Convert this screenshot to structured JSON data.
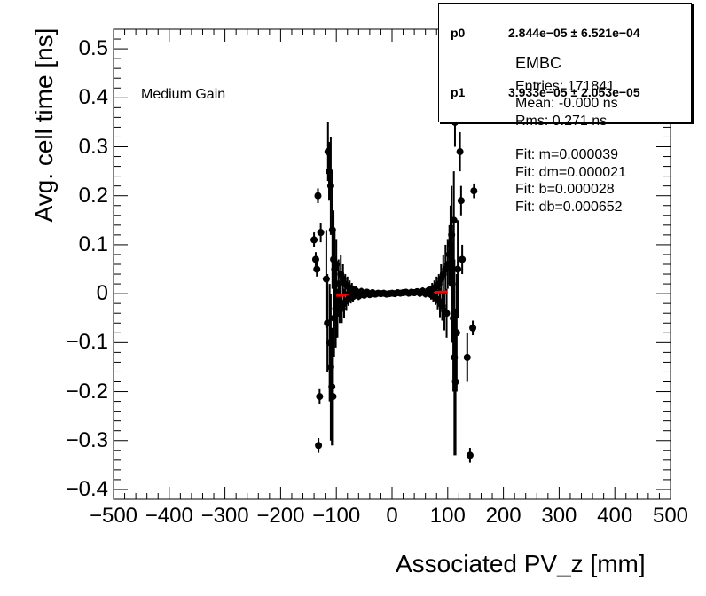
{
  "chart_data": {
    "type": "scatter",
    "xlabel": "Associated PV_z [mm]",
    "ylabel": "Avg. cell time [ns]",
    "annotation": "Medium Gain",
    "xlim": [
      -500,
      500
    ],
    "ylim": [
      -0.42,
      0.54
    ],
    "x_ticks": [
      "−500",
      "−400",
      "−300",
      "−200",
      "−100",
      "0",
      "100",
      "200",
      "300",
      "400",
      "500"
    ],
    "y_ticks": [
      "0.5",
      "0.4",
      "0.3",
      "0.2",
      "0.1",
      "0",
      "−0.1",
      "−0.2",
      "−0.3",
      "−0.4"
    ],
    "x_tick_values": [
      -500,
      -400,
      -300,
      -200,
      -100,
      0,
      100,
      200,
      300,
      400,
      500
    ],
    "y_tick_values": [
      0.5,
      0.4,
      0.3,
      0.2,
      0.1,
      0,
      -0.1,
      -0.2,
      -0.3,
      -0.4
    ],
    "grid": false,
    "fit_line": {
      "x": [
        -100,
        100
      ],
      "y": [
        -0.0039,
        0.0039
      ],
      "color": "#ff0000"
    },
    "points": [
      [
        -140,
        0.11,
        0.015
      ],
      [
        -137,
        0.07,
        0.015
      ],
      [
        -135,
        0.05,
        0.015
      ],
      [
        -133,
        0.2,
        0.015
      ],
      [
        -130,
        -0.21,
        0.015
      ],
      [
        -132,
        -0.31,
        0.015
      ],
      [
        -128,
        0.125,
        0.02
      ],
      [
        -115,
        0.29,
        0.06
      ],
      [
        -113,
        0.25,
        0.06
      ],
      [
        -110,
        0.22,
        0.1
      ],
      [
        -107,
        0.13,
        0.12
      ],
      [
        -105,
        0.07,
        0.1
      ],
      [
        -103,
        0.05,
        0.08
      ],
      [
        -101,
        -0.03,
        0.08
      ],
      [
        -118,
        0.03,
        0.1
      ],
      [
        -116,
        -0.06,
        0.1
      ],
      [
        -112,
        -0.1,
        0.12
      ],
      [
        -110,
        -0.15,
        0.15
      ],
      [
        -108,
        -0.19,
        0.12
      ],
      [
        -106,
        -0.21,
        0.1
      ],
      [
        -104,
        -0.05,
        0.08
      ],
      [
        -100,
        0.06,
        0.05
      ],
      [
        -98,
        -0.04,
        0.05
      ],
      [
        -96,
        0.02,
        0.05
      ],
      [
        -94,
        -0.02,
        0.04
      ],
      [
        -92,
        0.04,
        0.04
      ],
      [
        -90,
        -0.03,
        0.03
      ],
      [
        -88,
        0.03,
        0.03
      ],
      [
        -86,
        -0.02,
        0.03
      ],
      [
        -84,
        0.02,
        0.02
      ],
      [
        -82,
        -0.015,
        0.02
      ],
      [
        -80,
        0.015,
        0.02
      ],
      [
        -78,
        -0.01,
        0.015
      ],
      [
        -76,
        0.012,
        0.015
      ],
      [
        -74,
        -0.008,
        0.012
      ],
      [
        -72,
        0.01,
        0.012
      ],
      [
        -70,
        -0.006,
        0.01
      ],
      [
        -65,
        0.006,
        0.01
      ],
      [
        -60,
        -0.005,
        0.008
      ],
      [
        -55,
        0.004,
        0.008
      ],
      [
        -50,
        -0.003,
        0.007
      ],
      [
        -45,
        0.003,
        0.007
      ],
      [
        -40,
        -0.002,
        0.006
      ],
      [
        -35,
        0.002,
        0.006
      ],
      [
        -30,
        -0.001,
        0.006
      ],
      [
        -25,
        0.001,
        0.006
      ],
      [
        -20,
        0.0,
        0.006
      ],
      [
        -15,
        0.001,
        0.006
      ],
      [
        -10,
        -0.001,
        0.006
      ],
      [
        -5,
        0.0,
        0.006
      ],
      [
        0,
        0.001,
        0.006
      ],
      [
        5,
        0.0,
        0.006
      ],
      [
        10,
        0.002,
        0.006
      ],
      [
        15,
        0.001,
        0.006
      ],
      [
        20,
        0.002,
        0.006
      ],
      [
        25,
        0.003,
        0.006
      ],
      [
        30,
        0.001,
        0.006
      ],
      [
        35,
        0.003,
        0.007
      ],
      [
        40,
        0.002,
        0.007
      ],
      [
        45,
        0.004,
        0.007
      ],
      [
        50,
        0.001,
        0.008
      ],
      [
        55,
        0.005,
        0.008
      ],
      [
        60,
        0.0,
        0.008
      ],
      [
        65,
        0.006,
        0.01
      ],
      [
        70,
        -0.002,
        0.01
      ],
      [
        72,
        0.01,
        0.012
      ],
      [
        74,
        -0.005,
        0.012
      ],
      [
        76,
        0.012,
        0.015
      ],
      [
        78,
        -0.008,
        0.015
      ],
      [
        80,
        0.015,
        0.02
      ],
      [
        82,
        -0.012,
        0.02
      ],
      [
        84,
        0.02,
        0.02
      ],
      [
        86,
        -0.018,
        0.03
      ],
      [
        88,
        0.03,
        0.03
      ],
      [
        90,
        -0.025,
        0.03
      ],
      [
        92,
        0.04,
        0.04
      ],
      [
        94,
        -0.035,
        0.04
      ],
      [
        96,
        0.05,
        0.05
      ],
      [
        98,
        -0.04,
        0.05
      ],
      [
        100,
        0.06,
        0.05
      ],
      [
        103,
        0.08,
        0.06
      ],
      [
        105,
        0.1,
        0.08
      ],
      [
        107,
        0.12,
        0.1
      ],
      [
        108,
        0.02,
        0.12
      ],
      [
        110,
        -0.05,
        0.15
      ],
      [
        111,
        0.15,
        0.1
      ],
      [
        112,
        -0.13,
        0.2
      ],
      [
        114,
        -0.18,
        0.15
      ],
      [
        113,
        0.35,
        0.05
      ],
      [
        116,
        -0.08,
        0.12
      ],
      [
        118,
        0.05,
        0.1
      ],
      [
        122,
        0.29,
        0.04
      ],
      [
        124,
        0.19,
        0.03
      ],
      [
        126,
        0.07,
        0.03
      ],
      [
        135,
        -0.13,
        0.05
      ],
      [
        140,
        -0.33,
        0.015
      ],
      [
        145,
        -0.07,
        0.015
      ],
      [
        147,
        0.21,
        0.015
      ]
    ]
  },
  "stats": {
    "p0_label": "p0",
    "p0_value": "2.844e−05  ± 6.521e−04",
    "p1_label": "p1",
    "p1_value": "3.933e−05  ± 2.053e−05",
    "title": "EMBC",
    "entries": "Entries: 171841",
    "mean": "Mean: -0.000 ns",
    "rms": "Rms: 0.271 ns",
    "fit_m": "Fit: m=0.000039",
    "fit_dm": "Fit: dm=0.000021",
    "fit_b": "Fit: b=0.000028",
    "fit_db": "Fit: db=0.000652"
  }
}
